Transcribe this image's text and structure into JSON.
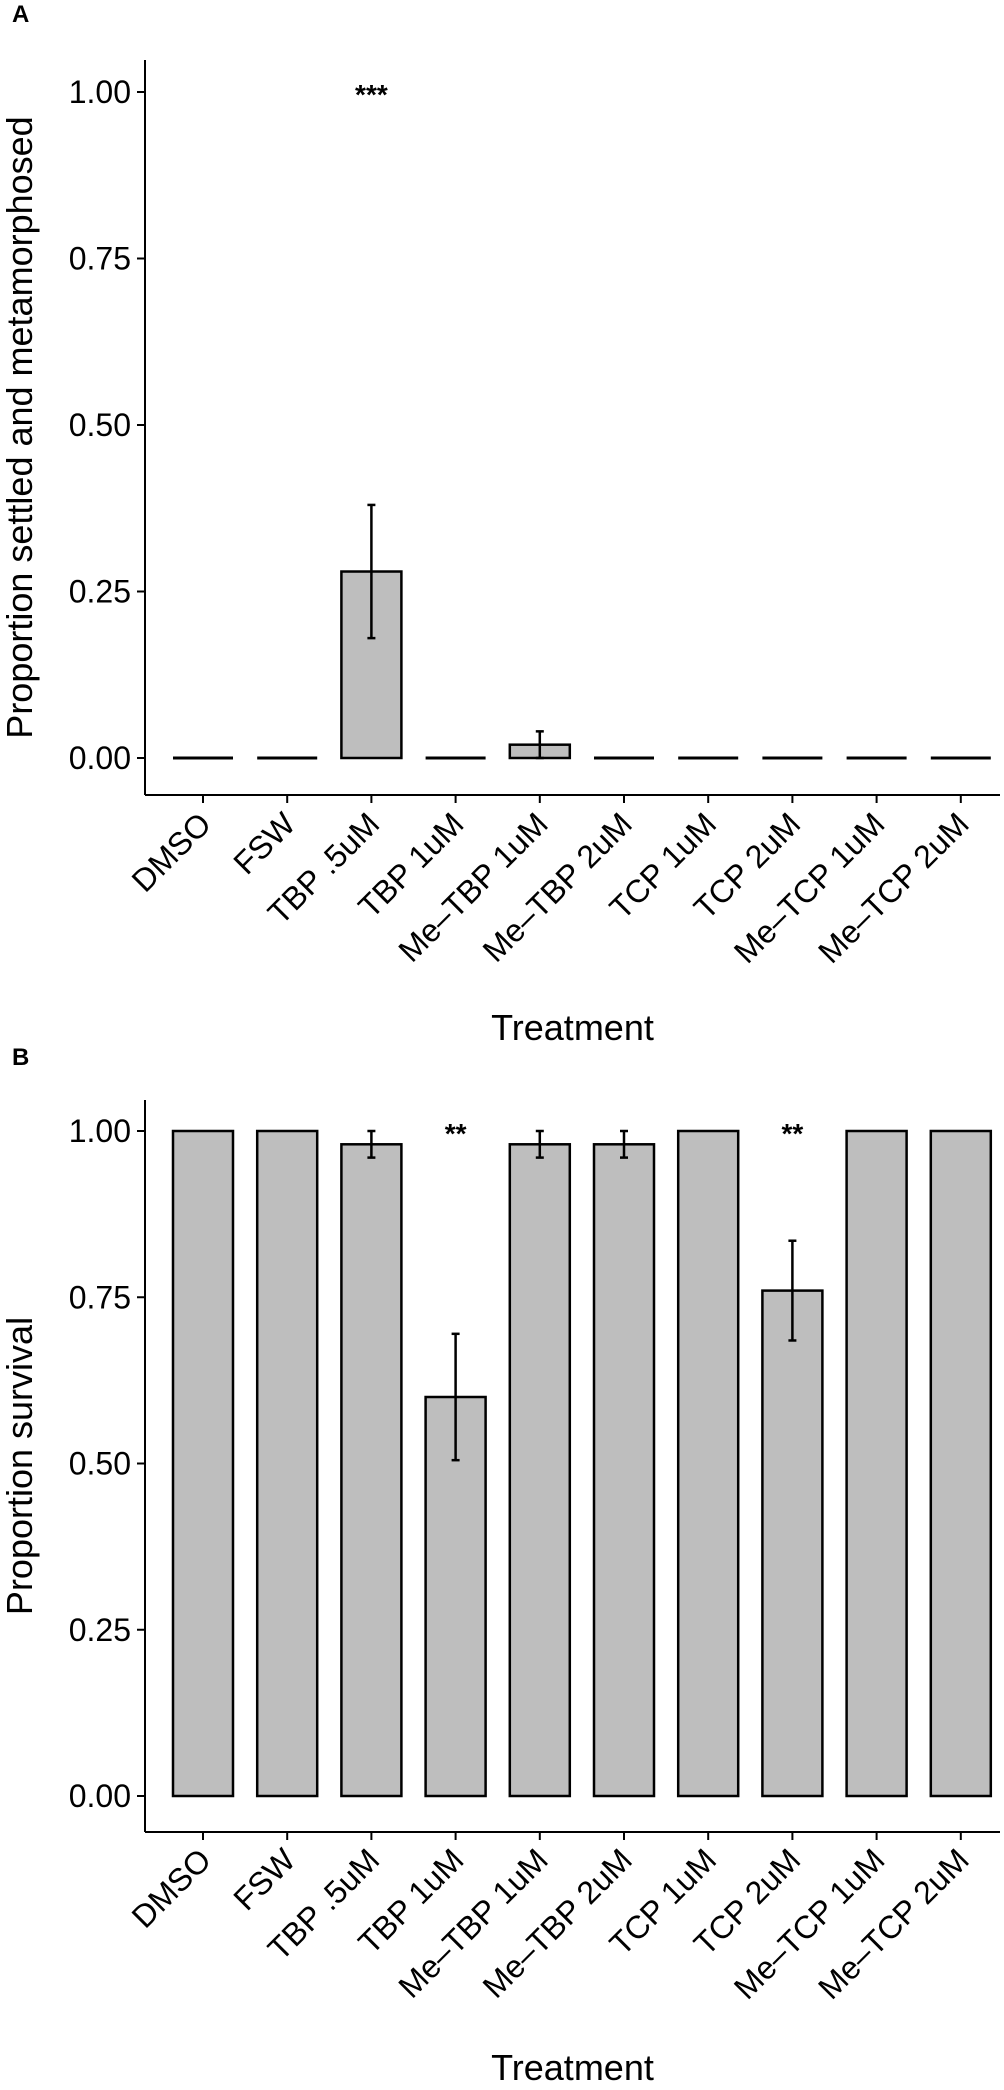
{
  "chart_data": [
    {
      "type": "bar",
      "panel": "A",
      "title": "",
      "xlabel": "Treatment",
      "ylabel": "Proportion settled and metamorphosed",
      "ylim": [
        0,
        1.0
      ],
      "yticks": [
        "0.00",
        "0.25",
        "0.50",
        "0.75",
        "1.00"
      ],
      "ytick_values": [
        0,
        0.25,
        0.5,
        0.75,
        1.0
      ],
      "categories": [
        "DMSO",
        "FSW",
        "TBP .5uM",
        "TBP 1uM",
        "Me–TBP 1uM",
        "Me–TBP 2uM",
        "TCP 1uM",
        "TCP 2uM",
        "Me–TCP 1uM",
        "Me–TCP 2uM"
      ],
      "values": [
        0,
        0,
        0.28,
        0,
        0.02,
        0,
        0,
        0,
        0,
        0
      ],
      "error_low": [
        null,
        null,
        0.18,
        null,
        0.0,
        null,
        null,
        null,
        null,
        null
      ],
      "error_high": [
        null,
        null,
        0.38,
        null,
        0.04,
        null,
        null,
        null,
        null,
        null
      ],
      "annotations": [
        {
          "category": "TBP .5uM",
          "text": "***",
          "y": 1.0
        }
      ],
      "grid": false,
      "bar_color": "#bebebe"
    },
    {
      "type": "bar",
      "panel": "B",
      "title": "",
      "xlabel": "Treatment",
      "ylabel": "Proportion survival",
      "ylim": [
        0,
        1.0
      ],
      "yticks": [
        "0.00",
        "0.25",
        "0.50",
        "0.75",
        "1.00"
      ],
      "ytick_values": [
        0,
        0.25,
        0.5,
        0.75,
        1.0
      ],
      "categories": [
        "DMSO",
        "FSW",
        "TBP .5uM",
        "TBP 1uM",
        "Me–TBP 1uM",
        "Me–TBP 2uM",
        "TCP 1uM",
        "TCP 2uM",
        "Me–TCP 1uM",
        "Me–TCP 2uM"
      ],
      "values": [
        1.0,
        1.0,
        0.98,
        0.6,
        0.98,
        0.98,
        1.0,
        0.76,
        1.0,
        1.0
      ],
      "error_low": [
        null,
        null,
        0.96,
        0.505,
        0.96,
        0.96,
        null,
        0.685,
        null,
        null
      ],
      "error_high": [
        null,
        null,
        1.0,
        0.695,
        1.0,
        1.0,
        null,
        0.835,
        null,
        null
      ],
      "annotations": [
        {
          "category": "TBP 1uM",
          "text": "**",
          "y": 1.0
        },
        {
          "category": "TCP 2uM",
          "text": "**",
          "y": 1.0
        }
      ],
      "grid": false,
      "bar_color": "#bebebe"
    }
  ]
}
